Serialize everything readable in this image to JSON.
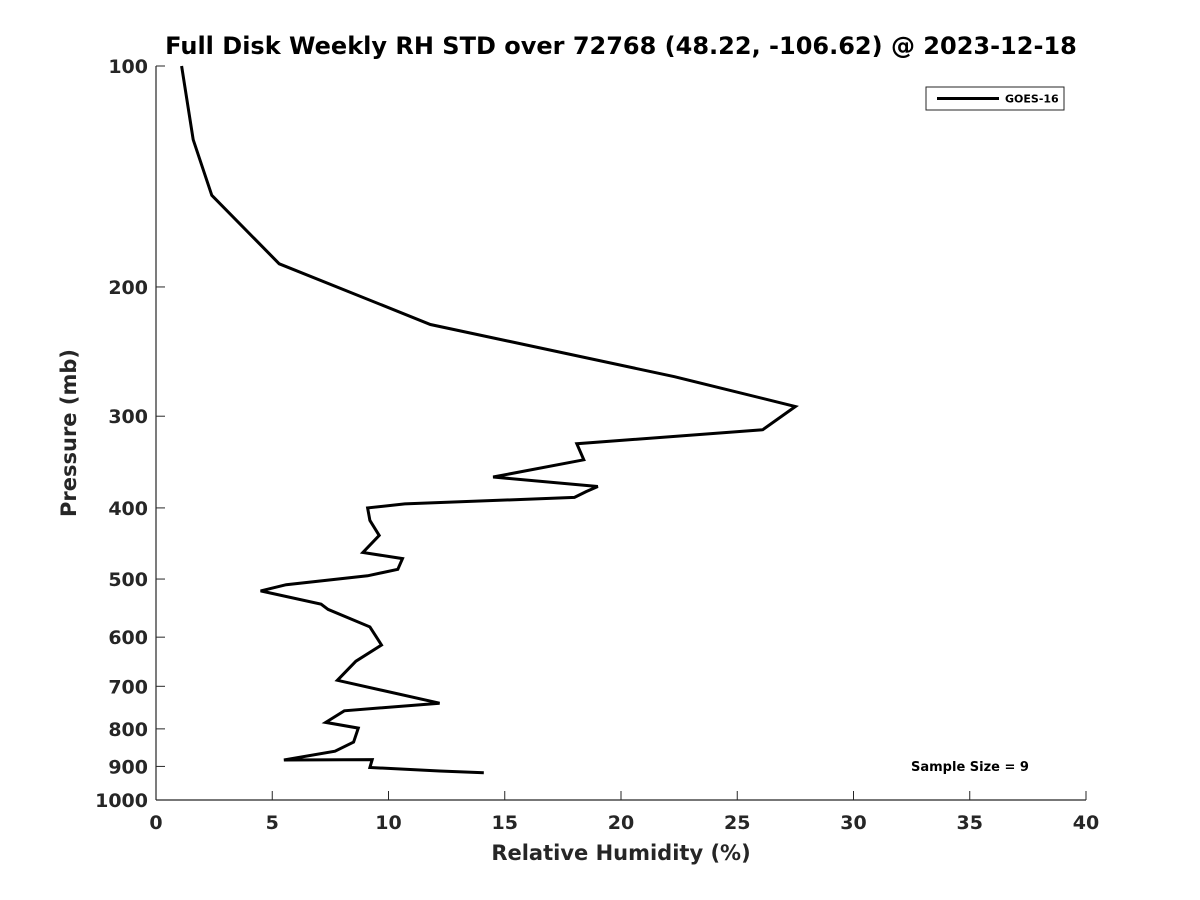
{
  "chart_data": {
    "type": "line",
    "title": "Full Disk Weekly RH STD over 72768 (48.22, -106.62) @ 2023-12-18",
    "xlabel": "Relative Humidity (%)",
    "ylabel": "Pressure (mb)",
    "xlim": [
      0,
      40
    ],
    "ylim": [
      100,
      1000
    ],
    "yscale": "log",
    "y_reversed": true,
    "xticks": [
      0,
      5,
      10,
      15,
      20,
      25,
      30,
      35,
      40
    ],
    "yticks": [
      100,
      200,
      300,
      400,
      500,
      600,
      700,
      800,
      900,
      1000
    ],
    "grid": false,
    "legend_position": "top-right",
    "annotation": "Sample Size = 9",
    "series": [
      {
        "name": "GOES-16",
        "color": "#000000",
        "x": [
          1.1,
          1.6,
          2.4,
          5.3,
          11.8,
          22.3,
          27.5,
          26.1,
          18.1,
          18.4,
          14.5,
          19.0,
          18.5,
          18.0,
          10.7,
          9.1,
          9.2,
          9.6,
          8.9,
          10.6,
          10.4,
          9.1,
          5.6,
          4.5,
          7.1,
          7.4,
          9.2,
          9.7,
          8.6,
          7.8,
          12.2,
          8.1,
          7.3,
          8.7,
          8.5,
          7.7,
          5.5,
          9.3,
          9.2,
          12.2,
          14.1
        ],
        "y": [
          100,
          126,
          150,
          186,
          225,
          265,
          291,
          313,
          327,
          344,
          363,
          374,
          380,
          387,
          395,
          400,
          416,
          436,
          460,
          469,
          485,
          495,
          509,
          519,
          541,
          550,
          581,
          615,
          647,
          687,
          738,
          756,
          784,
          798,
          834,
          858,
          882,
          881,
          903,
          913,
          918
        ]
      }
    ]
  }
}
